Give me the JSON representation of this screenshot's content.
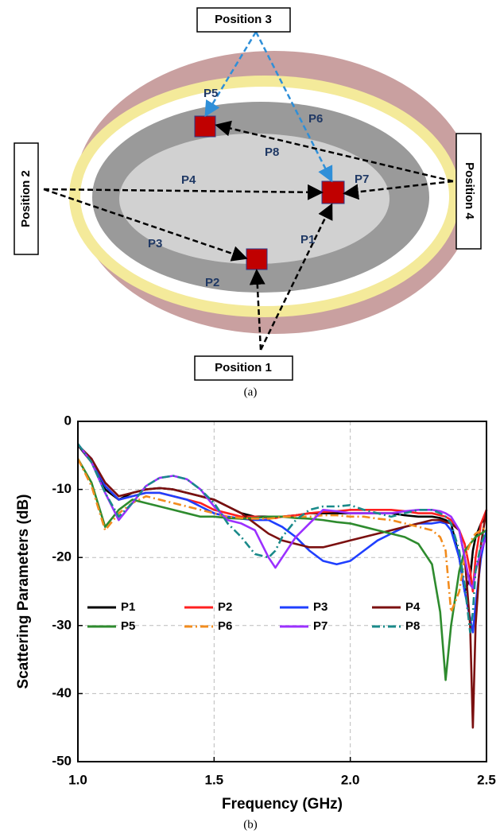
{
  "diagram": {
    "positions": [
      "Position 1",
      "Position 2",
      "Position 3",
      "Position 4"
    ],
    "points": [
      "P1",
      "P2",
      "P3",
      "P4",
      "P5",
      "P6",
      "P7",
      "P8"
    ],
    "caption": "(a)"
  },
  "chart_data": {
    "type": "line",
    "caption": "(b)",
    "x_label": "Frequency (GHz)",
    "y_label": "Scattering Parameters (dB)",
    "xlim": [
      1.0,
      2.5
    ],
    "ylim": [
      -50,
      0
    ],
    "xticks": [
      {
        "value": 1.0,
        "label": "1.0"
      },
      {
        "value": 1.5,
        "label": "1.5"
      },
      {
        "value": 2.0,
        "label": "2.0"
      },
      {
        "value": 2.5,
        "label": "2.5"
      }
    ],
    "yticks": [
      0,
      -10,
      -20,
      -30,
      -40,
      -50
    ],
    "grid": true,
    "legend": "lower left",
    "x": [
      1.0,
      1.05,
      1.1,
      1.15,
      1.2,
      1.25,
      1.3,
      1.35,
      1.4,
      1.45,
      1.5,
      1.55,
      1.6,
      1.65,
      1.7,
      1.725,
      1.75,
      1.8,
      1.85,
      1.9,
      1.95,
      2.0,
      2.05,
      2.1,
      2.15,
      2.2,
      2.25,
      2.3,
      2.33,
      2.35,
      2.37,
      2.4,
      2.42,
      2.44,
      2.45,
      2.46,
      2.48,
      2.5
    ],
    "series": [
      {
        "name": "P1",
        "color": "#000000",
        "linestyle": "solid",
        "values": [
          -3.5,
          -6,
          -10,
          -11.5,
          -10.5,
          -10,
          -9.8,
          -10,
          -10.5,
          -11,
          -11.5,
          -12.5,
          -13.5,
          -14,
          -14,
          -14,
          -14,
          -13.8,
          -13.5,
          -13.5,
          -13.5,
          -13.5,
          -13.5,
          -13.5,
          -13.5,
          -13.8,
          -14,
          -14,
          -14.2,
          -14.5,
          -15,
          -20,
          -25,
          -23,
          -19,
          -17,
          -15,
          -14
        ]
      },
      {
        "name": "P2",
        "color": "#ff2020",
        "linestyle": "solid",
        "values": [
          -3.5,
          -5.5,
          -9.5,
          -11.5,
          -11,
          -10.5,
          -10.5,
          -11,
          -11.5,
          -12,
          -13,
          -13.5,
          -14,
          -14,
          -14.2,
          -14.2,
          -14,
          -13.8,
          -13.5,
          -13.3,
          -13.2,
          -13,
          -13,
          -13,
          -13,
          -13.2,
          -13.5,
          -13.5,
          -13.8,
          -14,
          -14.5,
          -16,
          -18,
          -22,
          -25,
          -20,
          -15,
          -13
        ]
      },
      {
        "name": "P3",
        "color": "#1f3fff",
        "linestyle": "solid",
        "values": [
          -3.5,
          -5.5,
          -9.5,
          -11.5,
          -11,
          -10.5,
          -10.5,
          -11,
          -11.5,
          -12.5,
          -13.5,
          -14,
          -14.3,
          -14.5,
          -14.5,
          -15,
          -15.5,
          -17,
          -19,
          -20.5,
          -21,
          -20.5,
          -19,
          -17.5,
          -16.5,
          -15.5,
          -15,
          -15,
          -14.8,
          -15,
          -16,
          -20,
          -25,
          -29,
          -31,
          -27,
          -20,
          -16
        ]
      },
      {
        "name": "P4",
        "color": "#7b1010",
        "linestyle": "solid",
        "values": [
          -3.5,
          -5.5,
          -9,
          -11,
          -10.5,
          -10,
          -9.8,
          -10,
          -10.5,
          -11,
          -11.5,
          -12.5,
          -13.5,
          -15,
          -16.5,
          -17,
          -17.5,
          -18,
          -18.5,
          -18.5,
          -18,
          -17.5,
          -17,
          -16.5,
          -16,
          -15.5,
          -15,
          -14.5,
          -14.5,
          -14.8,
          -15,
          -16,
          -20,
          -30,
          -45,
          -30,
          -18,
          -13
        ]
      },
      {
        "name": "P5",
        "color": "#2e8b2e",
        "linestyle": "solid",
        "values": [
          -5.5,
          -9,
          -15.5,
          -13,
          -11.5,
          -12,
          -12.5,
          -13,
          -13.5,
          -14,
          -14,
          -14.2,
          -14.3,
          -14.2,
          -14,
          -14,
          -14,
          -14.2,
          -14.3,
          -14.5,
          -14.8,
          -15,
          -15.5,
          -16,
          -16.5,
          -17,
          -18,
          -21,
          -28,
          -38,
          -30,
          -22,
          -19,
          -18,
          -17.5,
          -17,
          -16.5,
          -16
        ]
      },
      {
        "name": "P6",
        "color": "#f28c1e",
        "linestyle": "dashdot",
        "values": [
          -5.5,
          -9.5,
          -16,
          -13.5,
          -12,
          -11,
          -11.5,
          -12,
          -12.5,
          -13,
          -13.5,
          -14,
          -14.2,
          -14.3,
          -14.3,
          -14.2,
          -14,
          -14,
          -14,
          -13.8,
          -13.8,
          -14,
          -14,
          -14.3,
          -14.5,
          -15,
          -15.5,
          -16,
          -17,
          -19,
          -28,
          -25,
          -20,
          -18,
          -17,
          -16.5,
          -16,
          -15.5
        ]
      },
      {
        "name": "P7",
        "color": "#9b30ff",
        "linestyle": "solid",
        "values": [
          -3.3,
          -6,
          -10.5,
          -14.5,
          -12,
          -9.5,
          -8.3,
          -8,
          -8.5,
          -10,
          -12.5,
          -14.5,
          -15,
          -16,
          -20,
          -21.5,
          -20,
          -17,
          -15,
          -13,
          -13.2,
          -13.5,
          -13.5,
          -13.5,
          -13.5,
          -13.2,
          -13,
          -13,
          -13.2,
          -13.5,
          -14,
          -16,
          -20,
          -24,
          -24.5,
          -22,
          -19,
          -17
        ]
      },
      {
        "name": "P8",
        "color": "#1a8a8a",
        "linestyle": "dashdot",
        "values": [
          -3.3,
          -6,
          -10.5,
          -14,
          -12,
          -9.5,
          -8.3,
          -8,
          -8.5,
          -10,
          -12,
          -15,
          -17,
          -19.5,
          -20,
          -19,
          -17,
          -14.5,
          -13,
          -12.5,
          -12.5,
          -12.3,
          -13,
          -13.5,
          -14,
          -13.5,
          -13,
          -13,
          -13.5,
          -14,
          -15,
          -19,
          -24,
          -31,
          -28,
          -22,
          -18,
          -16
        ]
      }
    ]
  }
}
